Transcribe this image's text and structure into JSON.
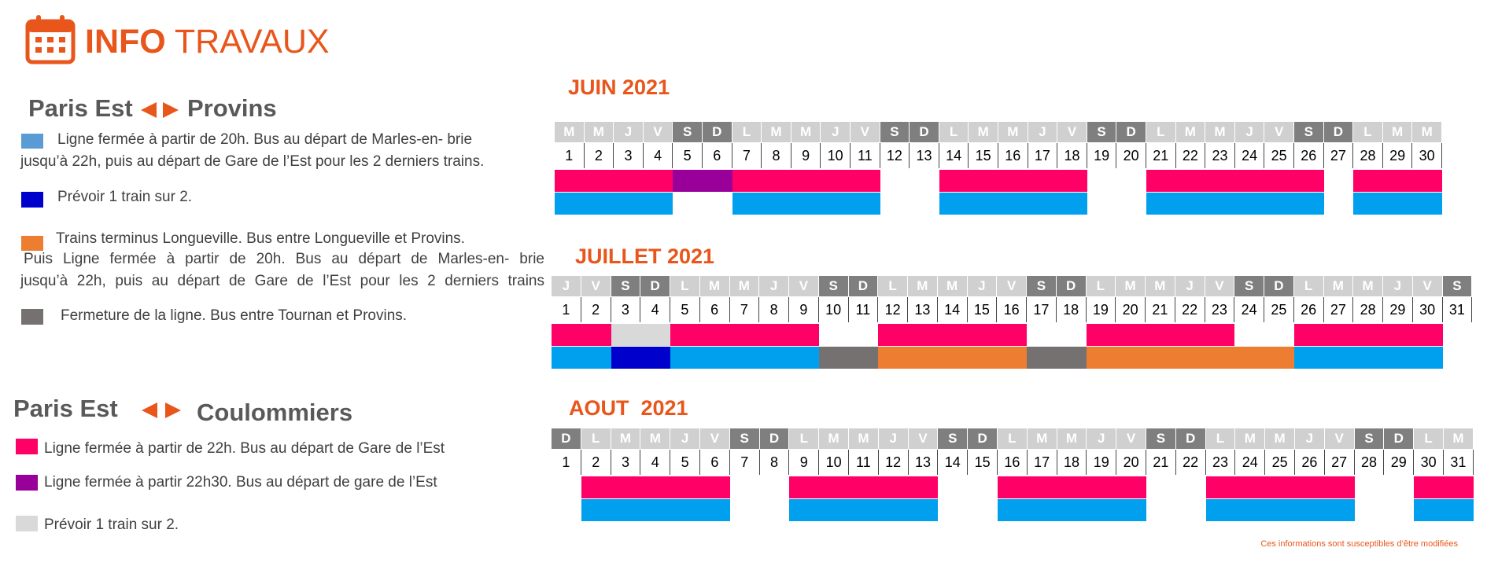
{
  "header": {
    "title_bold": "INFO",
    "title_rest": "TRAVAUX"
  },
  "colors": {
    "orange_title": "#e8561b",
    "legend_light_blue": "#5b9bd5",
    "dark_blue": "#0000cc",
    "orange": "#ed7d31",
    "dark_grey": "#767171",
    "pink": "#ff0066",
    "purple": "#990099",
    "light_grey": "#d9d9d9",
    "bar_blue": "#00a0ee",
    "weekday_grey": "#d0d0d0",
    "weekend_grey": "#7f7f7f"
  },
  "route1": {
    "from": "Paris Est",
    "to": "Provins",
    "legend": [
      {
        "color": "#5b9bd5",
        "lines": [
          "Ligne fermée à partir de 20h. Bus au départ de Marles-en- brie",
          "jusqu’à 22h, puis au départ de Gare de l’Est pour les 2 derniers trains."
        ]
      },
      {
        "color": "#0000cc",
        "lines": [
          "Prévoir 1 train sur 2."
        ]
      },
      {
        "color": "#ed7d31",
        "lines": [
          "Trains terminus Longueville. Bus entre Longueville et Provins.",
          "Puis Ligne fermée à partir de 20h. Bus au départ de Marles-en- brie",
          "jusqu’à 22h, puis au départ de Gare de l’Est pour les 2 derniers trains"
        ]
      },
      {
        "color": "#767171",
        "lines": [
          "Fermeture de la ligne. Bus entre Tournan et Provins."
        ]
      }
    ]
  },
  "route2": {
    "from": "Paris Est",
    "to": "Coulommiers",
    "legend": [
      {
        "color": "#ff0066",
        "lines": [
          "Ligne fermée à partir de 22h. Bus au départ de Gare de l’Est"
        ]
      },
      {
        "color": "#990099",
        "lines": [
          "Ligne fermée à partir 22h30. Bus au départ de gare de l’Est"
        ]
      },
      {
        "color": "#d9d9d9",
        "lines": [
          "Prévoir 1 train sur 2."
        ]
      }
    ]
  },
  "months": [
    {
      "title": "JUIN 2021",
      "days": [
        [
          "M",
          1,
          "w"
        ],
        [
          "M",
          2,
          "w"
        ],
        [
          "J",
          3,
          "w"
        ],
        [
          "V",
          4,
          "w"
        ],
        [
          "S",
          5,
          "e"
        ],
        [
          "D",
          6,
          "e"
        ],
        [
          "L",
          7,
          "w"
        ],
        [
          "M",
          8,
          "w"
        ],
        [
          "M",
          9,
          "w"
        ],
        [
          "J",
          10,
          "w"
        ],
        [
          "V",
          11,
          "w"
        ],
        [
          "S",
          12,
          "e"
        ],
        [
          "D",
          13,
          "e"
        ],
        [
          "L",
          14,
          "w"
        ],
        [
          "M",
          15,
          "w"
        ],
        [
          "M",
          16,
          "w"
        ],
        [
          "J",
          17,
          "w"
        ],
        [
          "V",
          18,
          "w"
        ],
        [
          "S",
          19,
          "e"
        ],
        [
          "D",
          20,
          "e"
        ],
        [
          "L",
          21,
          "w"
        ],
        [
          "M",
          22,
          "w"
        ],
        [
          "M",
          23,
          "w"
        ],
        [
          "J",
          24,
          "w"
        ],
        [
          "V",
          25,
          "w"
        ],
        [
          "S",
          26,
          "e"
        ],
        [
          "D",
          27,
          "e"
        ],
        [
          "L",
          28,
          "w"
        ],
        [
          "M",
          29,
          "w"
        ],
        [
          "M",
          30,
          "w"
        ]
      ],
      "row1": [
        [
          "pink",
          1,
          4
        ],
        [
          "purple",
          5,
          6
        ],
        [
          "pink",
          7,
          11
        ],
        [
          "pink",
          14,
          18
        ],
        [
          "pink",
          21,
          26
        ],
        [
          "pink",
          28,
          30
        ]
      ],
      "row2": [
        [
          "blue",
          1,
          4
        ],
        [
          "blue",
          7,
          11
        ],
        [
          "blue",
          14,
          18
        ],
        [
          "blue",
          21,
          26
        ],
        [
          "blue",
          28,
          30
        ]
      ]
    },
    {
      "title": "JUILLET 2021",
      "days": [
        [
          "J",
          1,
          "w"
        ],
        [
          "V",
          2,
          "w"
        ],
        [
          "S",
          3,
          "e"
        ],
        [
          "D",
          4,
          "e"
        ],
        [
          "L",
          5,
          "w"
        ],
        [
          "M",
          6,
          "w"
        ],
        [
          "M",
          7,
          "w"
        ],
        [
          "J",
          8,
          "w"
        ],
        [
          "V",
          9,
          "w"
        ],
        [
          "S",
          10,
          "e"
        ],
        [
          "D",
          11,
          "e"
        ],
        [
          "L",
          12,
          "w"
        ],
        [
          "M",
          13,
          "w"
        ],
        [
          "M",
          14,
          "w"
        ],
        [
          "J",
          15,
          "w"
        ],
        [
          "V",
          16,
          "w"
        ],
        [
          "S",
          17,
          "e"
        ],
        [
          "D",
          18,
          "e"
        ],
        [
          "L",
          19,
          "w"
        ],
        [
          "M",
          20,
          "w"
        ],
        [
          "M",
          21,
          "w"
        ],
        [
          "J",
          22,
          "w"
        ],
        [
          "V",
          23,
          "w"
        ],
        [
          "S",
          24,
          "e"
        ],
        [
          "D",
          25,
          "e"
        ],
        [
          "L",
          26,
          "w"
        ],
        [
          "M",
          27,
          "w"
        ],
        [
          "M",
          28,
          "w"
        ],
        [
          "J",
          29,
          "w"
        ],
        [
          "V",
          30,
          "w"
        ],
        [
          "S",
          31,
          "e"
        ]
      ],
      "row1": [
        [
          "pink",
          1,
          2
        ],
        [
          "lightgrey",
          3,
          4
        ],
        [
          "pink",
          5,
          9
        ],
        [
          "pink",
          12,
          16
        ],
        [
          "pink",
          19,
          23
        ],
        [
          "pink",
          26,
          30
        ]
      ],
      "row2": [
        [
          "blue",
          1,
          2
        ],
        [
          "darkblue",
          3,
          4
        ],
        [
          "blue",
          5,
          9
        ],
        [
          "grey",
          10,
          11
        ],
        [
          "orange",
          12,
          16
        ],
        [
          "grey",
          17,
          18
        ],
        [
          "orange",
          19,
          25
        ],
        [
          "blue",
          26,
          30
        ]
      ]
    },
    {
      "title": "AOUT  2021",
      "days": [
        [
          "D",
          1,
          "e"
        ],
        [
          "L",
          2,
          "w"
        ],
        [
          "M",
          3,
          "w"
        ],
        [
          "M",
          4,
          "w"
        ],
        [
          "J",
          5,
          "w"
        ],
        [
          "V",
          6,
          "w"
        ],
        [
          "S",
          7,
          "e"
        ],
        [
          "D",
          8,
          "e"
        ],
        [
          "L",
          9,
          "w"
        ],
        [
          "M",
          10,
          "w"
        ],
        [
          "M",
          11,
          "w"
        ],
        [
          "J",
          12,
          "w"
        ],
        [
          "V",
          13,
          "w"
        ],
        [
          "S",
          14,
          "e"
        ],
        [
          "D",
          15,
          "e"
        ],
        [
          "L",
          16,
          "w"
        ],
        [
          "M",
          17,
          "w"
        ],
        [
          "M",
          18,
          "w"
        ],
        [
          "J",
          19,
          "w"
        ],
        [
          "V",
          20,
          "w"
        ],
        [
          "S",
          21,
          "e"
        ],
        [
          "D",
          22,
          "e"
        ],
        [
          "L",
          23,
          "w"
        ],
        [
          "M",
          24,
          "w"
        ],
        [
          "M",
          25,
          "w"
        ],
        [
          "J",
          26,
          "w"
        ],
        [
          "V",
          27,
          "w"
        ],
        [
          "S",
          28,
          "e"
        ],
        [
          "D",
          29,
          "e"
        ],
        [
          "L",
          30,
          "w"
        ],
        [
          "M",
          31,
          "w"
        ]
      ],
      "row1": [
        [
          "pink",
          2,
          6
        ],
        [
          "pink",
          9,
          13
        ],
        [
          "pink",
          16,
          20
        ],
        [
          "pink",
          23,
          27
        ],
        [
          "pink",
          30,
          31
        ]
      ],
      "row2": [
        [
          "blue",
          2,
          6
        ],
        [
          "blue",
          9,
          13
        ],
        [
          "blue",
          16,
          20
        ],
        [
          "blue",
          23,
          27
        ],
        [
          "blue",
          30,
          31
        ]
      ]
    }
  ],
  "footer": "Ces informations sont susceptibles d’être modifiées"
}
